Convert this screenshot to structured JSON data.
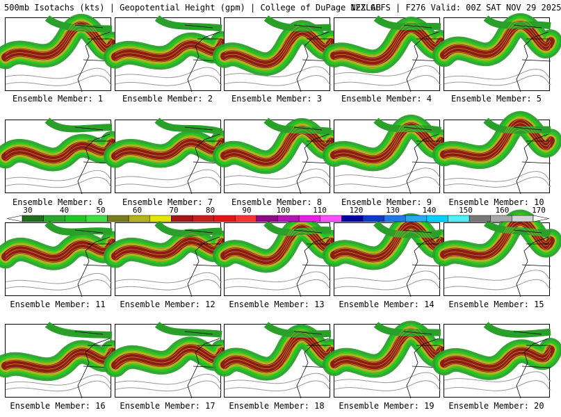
{
  "header": {
    "left_title": "500mb Isotachs (kts) | Geopotential Height (gpm) | College of DuPage NEXLAB",
    "right_title": "12Z GEFS | F276 Valid: 00Z SAT NOV 29 2025"
  },
  "members": [
    {
      "label": "Ensemble Member: 1"
    },
    {
      "label": "Ensemble Member: 2"
    },
    {
      "label": "Ensemble Member: 3"
    },
    {
      "label": "Ensemble Member: 4"
    },
    {
      "label": "Ensemble Member: 5"
    },
    {
      "label": "Ensemble Member: 6"
    },
    {
      "label": "Ensemble Member: 7"
    },
    {
      "label": "Ensemble Member: 8"
    },
    {
      "label": "Ensemble Member: 9"
    },
    {
      "label": "Ensemble Member: 10"
    },
    {
      "label": "Ensemble Member: 11"
    },
    {
      "label": "Ensemble Member: 12"
    },
    {
      "label": "Ensemble Member: 13"
    },
    {
      "label": "Ensemble Member: 14"
    },
    {
      "label": "Ensemble Member: 15"
    },
    {
      "label": "Ensemble Member: 16"
    },
    {
      "label": "Ensemble Member: 17"
    },
    {
      "label": "Ensemble Member: 18"
    },
    {
      "label": "Ensemble Member: 19"
    },
    {
      "label": "Ensemble Member: 20"
    }
  ],
  "colorbar": {
    "labels": [
      "30",
      "40",
      "50",
      "60",
      "70",
      "80",
      "90",
      "100",
      "110",
      "120",
      "130",
      "140",
      "150",
      "160",
      "170"
    ],
    "colors": [
      "#1e6e1e",
      "#28a828",
      "#22c822",
      "#40e040",
      "#7a7a1e",
      "#b4b41e",
      "#e6e600",
      "#a01818",
      "#c81e1e",
      "#e61414",
      "#ff3030",
      "#8c0a8c",
      "#b414b4",
      "#e61ee6",
      "#ff50ff",
      "#0000a0",
      "#0a3cc8",
      "#1e78e6",
      "#28aaf0",
      "#00d2ff",
      "#50f0ff",
      "#787878",
      "#a8a8a8",
      "#d2d2d2"
    ]
  }
}
